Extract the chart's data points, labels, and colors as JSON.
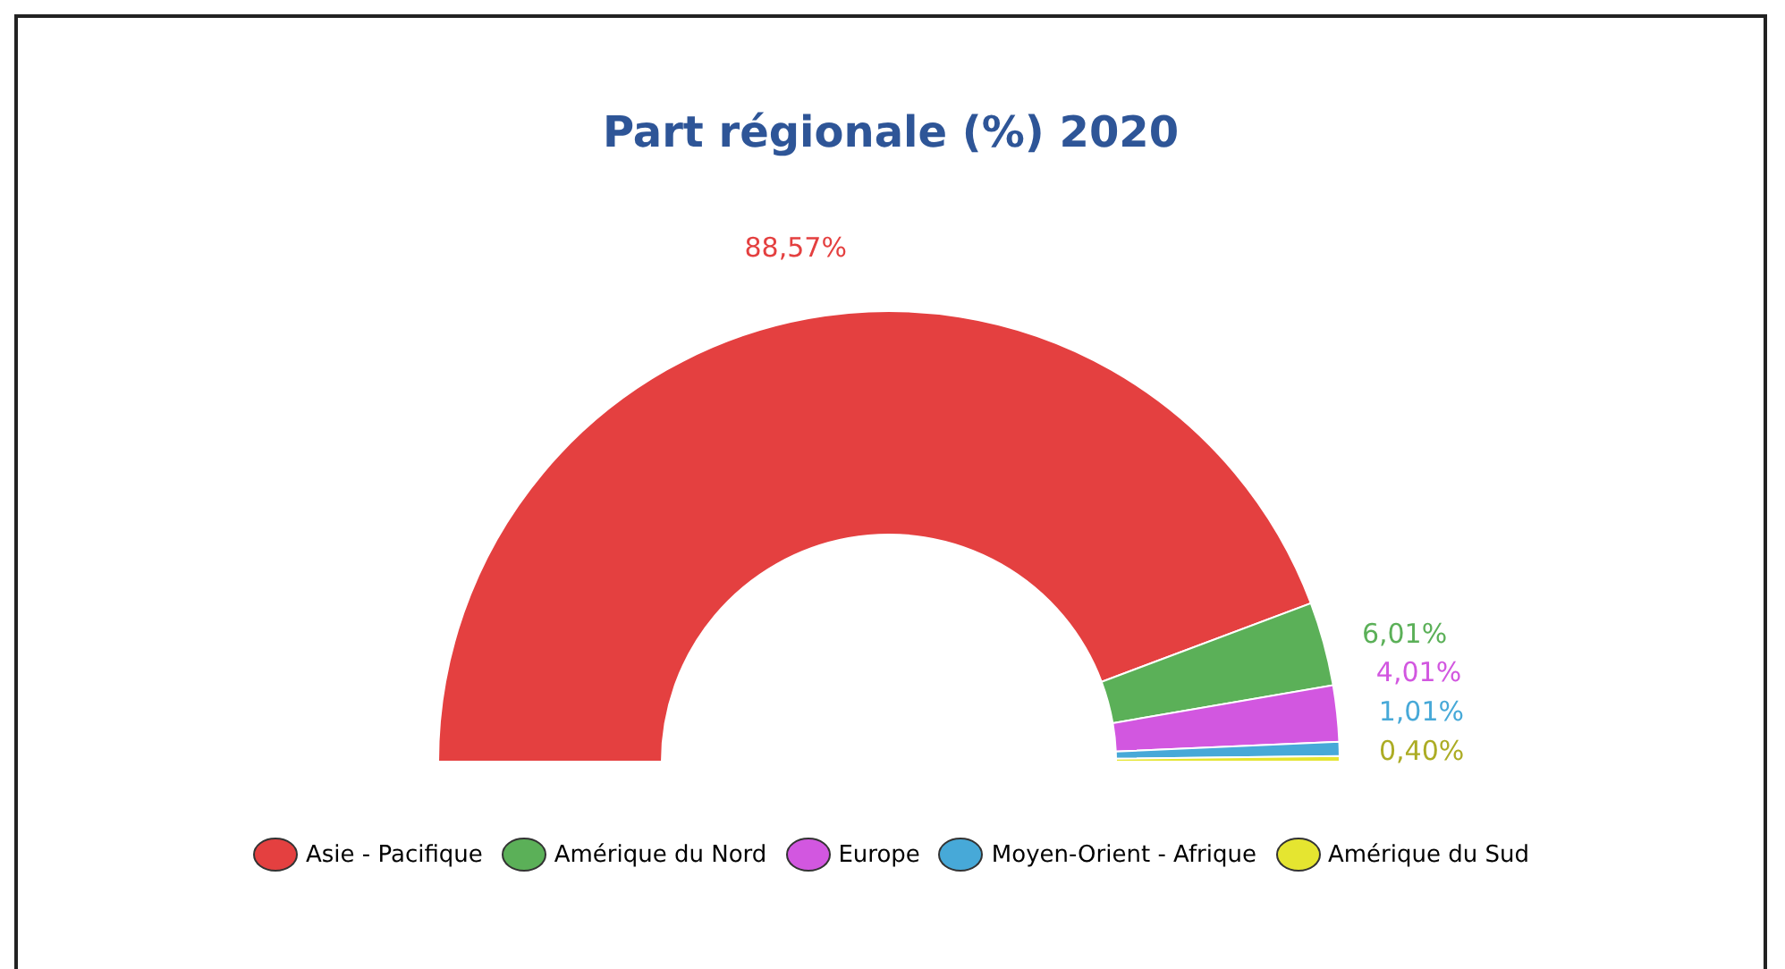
{
  "chart_data": {
    "type": "donut",
    "title": "Part régionale (%) 2020",
    "categories": [
      "Asie - Pacifique",
      "Amérique du Nord",
      "Europe",
      "Moyen-Orient - Afrique",
      "Amérique du Sud"
    ],
    "values": [
      88.57,
      6.01,
      4.01,
      1.01,
      0.4
    ],
    "value_labels": [
      "88,57%",
      "6,01%",
      "4,01%",
      "1,01%",
      "0,40%"
    ],
    "colors": [
      "#e44040",
      "#5bb058",
      "#d257e0",
      "#47a9d8",
      "#e5e530"
    ],
    "legend": "bottom"
  }
}
